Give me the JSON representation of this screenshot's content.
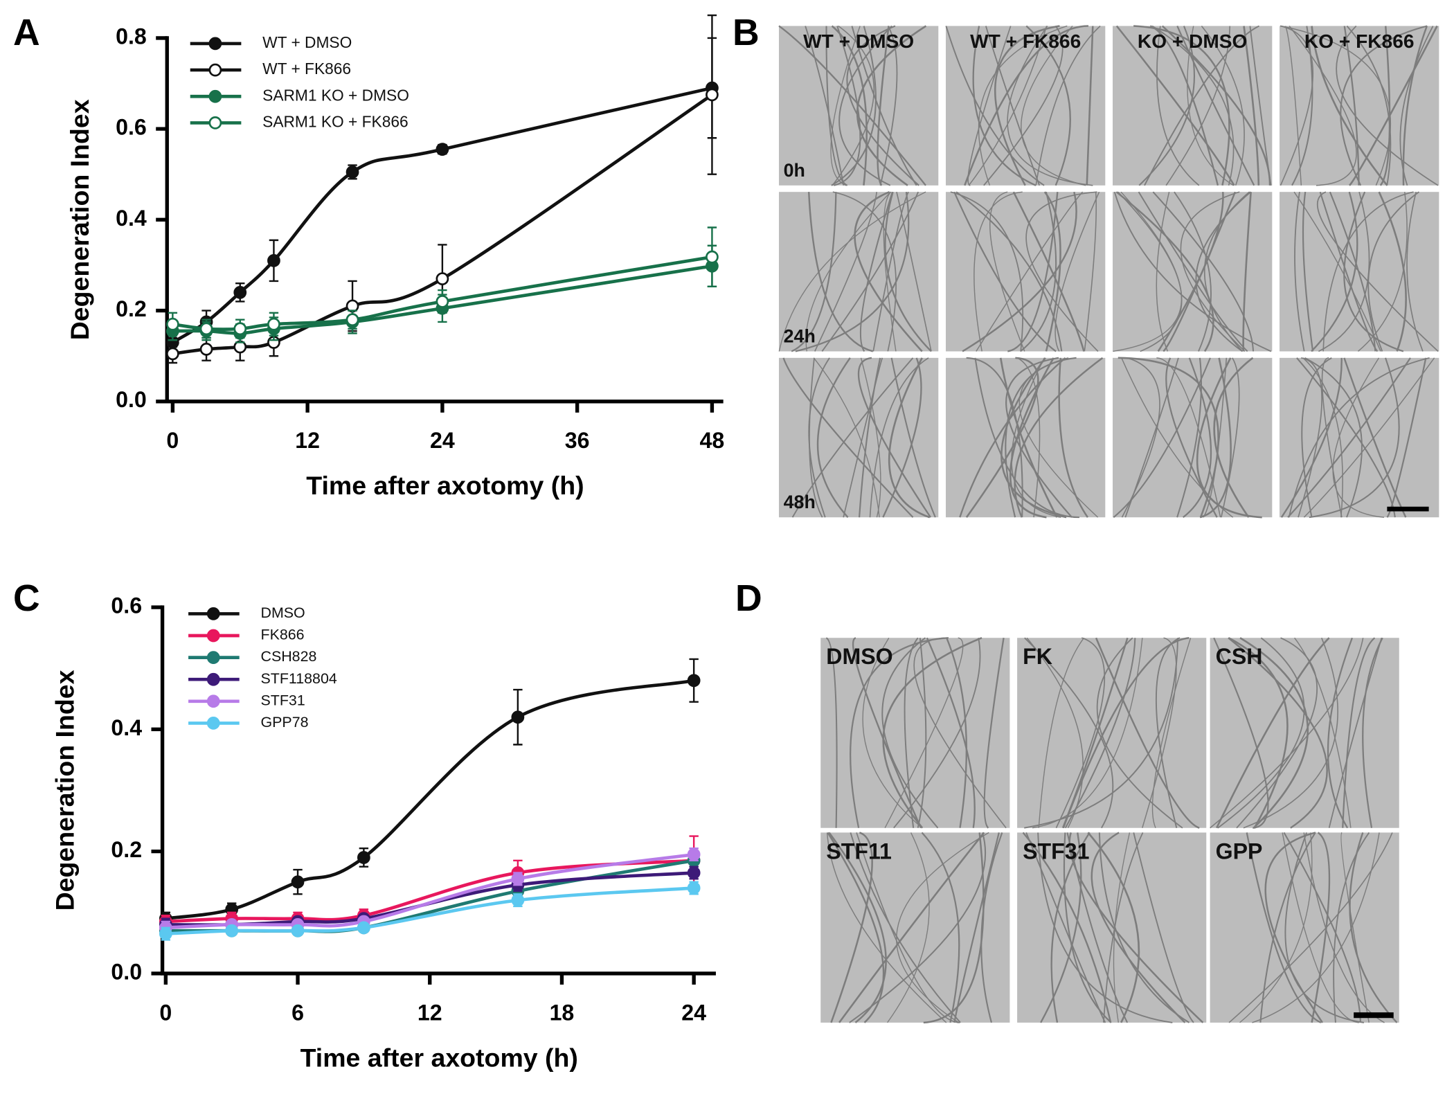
{
  "panel_labels": [
    "A",
    "B",
    "C",
    "D"
  ],
  "chart_data": [
    {
      "type": "line",
      "x_label": "Time after axotomy (h)",
      "y_label": "Degeneration Index",
      "x": [
        0,
        3,
        6,
        9,
        16,
        24,
        48
      ],
      "xlim": [
        -0.5,
        49
      ],
      "xticks": [
        0,
        12,
        24,
        36,
        48
      ],
      "ylim": [
        0,
        0.8
      ],
      "yticks": [
        {
          "value": 0,
          "label": "0.0"
        },
        0.2,
        0.4,
        0.6,
        0.8
      ],
      "series": [
        {
          "name": "WT + DMSO",
          "color": "#111111",
          "markers": "filled",
          "values": [
            0.13,
            0.175,
            0.24,
            0.31,
            0.505,
            0.555,
            0.69
          ],
          "errors": [
            0.01,
            0.025,
            0.02,
            0.045,
            0.015,
            0.01,
            0.11
          ]
        },
        {
          "name": "WT + FK866",
          "color": "#111111",
          "markers": "open",
          "values": [
            0.105,
            0.115,
            0.12,
            0.13,
            0.21,
            0.27,
            0.675
          ],
          "errors": [
            0.02,
            0.025,
            0.03,
            0.03,
            0.055,
            0.075,
            0.175
          ]
        },
        {
          "name": "SARM1 KO + DMSO",
          "color": "#17714a",
          "markers": "filled",
          "values": [
            0.155,
            0.155,
            0.15,
            0.16,
            0.175,
            0.205,
            0.298
          ],
          "errors": [
            0.02,
            0.02,
            0.02,
            0.025,
            0.025,
            0.03,
            0.045
          ]
        },
        {
          "name": "SARM1 KO + FK866",
          "color": "#17714a",
          "markers": "open",
          "values": [
            0.17,
            0.16,
            0.16,
            0.17,
            0.18,
            0.22,
            0.318
          ],
          "errors": [
            0.025,
            0.02,
            0.02,
            0.025,
            0.02,
            0.025,
            0.065
          ]
        }
      ]
    },
    {
      "type": "line",
      "x_label": "Time after axotomy (h)",
      "y_label": "Degeneration Index",
      "x": [
        0,
        3,
        6,
        9,
        16,
        24
      ],
      "xlim": [
        -0.15,
        25
      ],
      "xticks": [
        0,
        6,
        12,
        18,
        24
      ],
      "ylim": [
        0,
        0.6
      ],
      "yticks": [
        {
          "value": 0,
          "label": "0.0"
        },
        0.2,
        0.4,
        0.6
      ],
      "series": [
        {
          "name": "DMSO",
          "color": "#111111",
          "markers": "filled",
          "values": [
            0.09,
            0.105,
            0.15,
            0.19,
            0.42,
            0.48
          ],
          "errors": [
            0.01,
            0.01,
            0.02,
            0.015,
            0.045,
            0.035
          ]
        },
        {
          "name": "FK866",
          "color": "#e8175d",
          "markers": "filled",
          "values": [
            0.085,
            0.09,
            0.09,
            0.095,
            0.165,
            0.185
          ],
          "errors": [
            0.01,
            0.01,
            0.01,
            0.01,
            0.02,
            0.04
          ]
        },
        {
          "name": "CSH828",
          "color": "#1f7a72",
          "markers": "filled",
          "values": [
            0.07,
            0.07,
            0.07,
            0.075,
            0.135,
            0.185
          ],
          "errors": [
            0.01,
            0.005,
            0.005,
            0.005,
            0.01,
            0.01
          ]
        },
        {
          "name": "STF118804",
          "color": "#3d1a78",
          "markers": "filled",
          "values": [
            0.08,
            0.08,
            0.085,
            0.09,
            0.145,
            0.165
          ],
          "errors": [
            0.01,
            0.005,
            0.005,
            0.005,
            0.01,
            0.01
          ]
        },
        {
          "name": "STF31",
          "color": "#b77be8",
          "markers": "filled",
          "values": [
            0.075,
            0.08,
            0.08,
            0.085,
            0.155,
            0.195
          ],
          "errors": [
            0.01,
            0.005,
            0.005,
            0.005,
            0.01,
            0.01
          ]
        },
        {
          "name": "GPP78",
          "color": "#5bc8f0",
          "markers": "filled",
          "values": [
            0.065,
            0.07,
            0.07,
            0.075,
            0.12,
            0.14
          ],
          "errors": [
            0.01,
            0.005,
            0.005,
            0.005,
            0.01,
            0.01
          ]
        }
      ]
    }
  ],
  "micrographs": [
    {
      "columns": [
        "WT + DMSO",
        "WT + FK866",
        "KO + DMSO",
        "KO + FK866"
      ],
      "rows": [
        "0h",
        "24h",
        "48h"
      ]
    },
    {
      "labels": [
        "DMSO",
        "FK",
        "CSH",
        "STF11",
        "STF31",
        "GPP"
      ]
    }
  ]
}
